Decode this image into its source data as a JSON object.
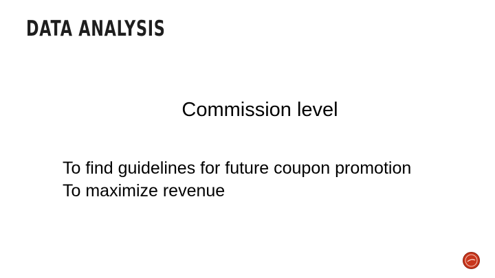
{
  "slide": {
    "title": "DATA ANALYSIS",
    "subtitle": "Commission level",
    "goals": [
      "To find guidelines for future coupon promotion",
      "To maximize revenue"
    ],
    "nav_icon": "next-slide-icon",
    "accent_color": "#c8361c"
  }
}
